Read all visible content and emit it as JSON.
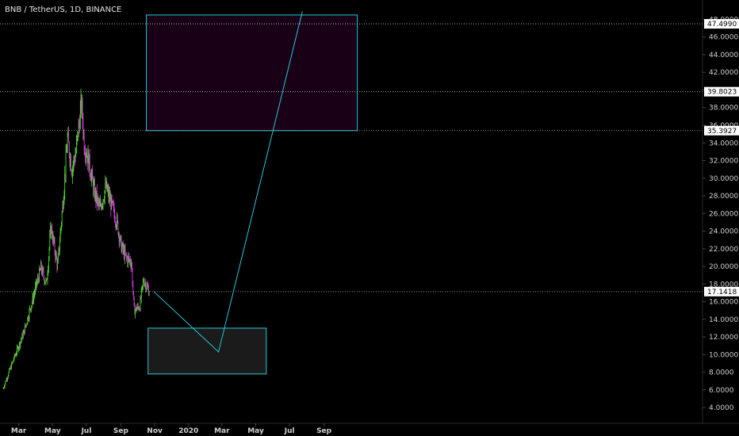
{
  "chart_data": {
    "type": "candlestick",
    "title": "BNB / TetherUS, 1D, BINANCE",
    "y_ticks": [
      "4.0000",
      "6.0000",
      "8.0000",
      "10.0000",
      "12.0000",
      "14.0000",
      "16.0000",
      "18.0000",
      "20.0000",
      "22.0000",
      "24.0000",
      "26.0000",
      "28.0000",
      "30.0000",
      "32.0000",
      "34.0000",
      "36.0000",
      "38.0000",
      "40.0000",
      "42.0000",
      "44.0000",
      "46.0000",
      "48.0000"
    ],
    "x_ticks": [
      "Mar",
      "May",
      "Jul",
      "Sep",
      "Nov",
      "2020",
      "Mar",
      "May",
      "Jul",
      "Sep"
    ],
    "ylim": [
      2.3,
      49.3
    ],
    "price_levels": [
      "47.4990",
      "39.8023",
      "35.3927",
      "17.1418"
    ],
    "series_summary": {
      "start": "2019-02-01",
      "end": "2019-10-22",
      "open_start": 6.2,
      "peak": 39.5,
      "peak_date": "2019-06-22",
      "low_late": 14.3,
      "close_last": 17.14
    },
    "projection": {
      "points": [
        {
          "date": "2019-10-31",
          "value": 17.1
        },
        {
          "date": "2020-02-24",
          "value": 10.3
        },
        {
          "date": "2020-07-24",
          "value": 48.9
        }
      ]
    },
    "zones": [
      {
        "type": "target",
        "from_date": "2019-10-17",
        "to_date": "2020-10-31",
        "low": 35.39,
        "high": 48.5,
        "color": "#1a0016"
      },
      {
        "type": "buy",
        "from_date": "2019-10-20",
        "to_date": "2020-05-20",
        "low": 7.8,
        "high": 13.0,
        "color": "#1b1b1b"
      }
    ],
    "colors": {
      "up": "#43e01a",
      "down": "#d83be0",
      "zone_border": "#27c7d8",
      "projection": "#27c7d8",
      "level_line": "#bdbdbd",
      "tag_bg": "#ffffff"
    }
  }
}
